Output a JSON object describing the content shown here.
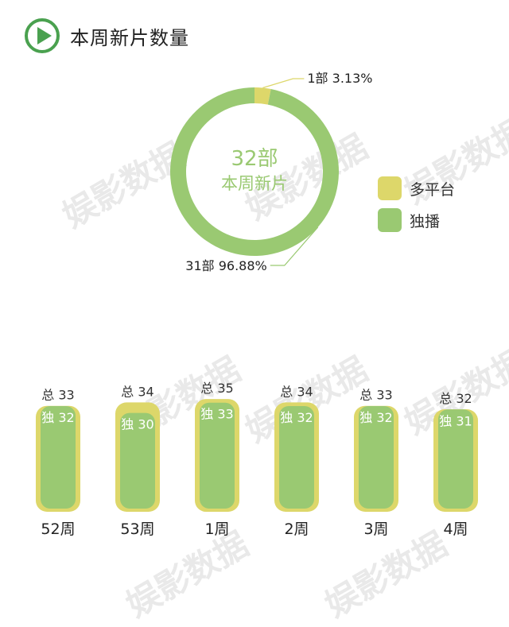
{
  "header": {
    "title": "本周新片数量",
    "icon": "play-icon"
  },
  "colors": {
    "green": "#9ac972",
    "yellow": "#ddd76a",
    "accent": "#4aa14f"
  },
  "watermark_text": "娱影数据",
  "chart_data": [
    {
      "type": "pie",
      "center_value": "32部",
      "center_label": "本周新片",
      "slices": [
        {
          "name": "多平台",
          "value": 1,
          "count_label": "1部",
          "percent_label": "3.13%"
        },
        {
          "name": "独播",
          "value": 31,
          "count_label": "31部",
          "percent_label": "96.88%"
        }
      ],
      "legend": [
        "多平台",
        "独播"
      ],
      "legend_position": "right"
    },
    {
      "type": "bar",
      "categories": [
        "52周",
        "53周",
        "1周",
        "2周",
        "3周",
        "4周"
      ],
      "series": [
        {
          "name": "总",
          "values": [
            33,
            34,
            35,
            34,
            33,
            32
          ]
        },
        {
          "name": "独",
          "values": [
            32,
            30,
            33,
            32,
            32,
            31
          ]
        }
      ]
    }
  ]
}
